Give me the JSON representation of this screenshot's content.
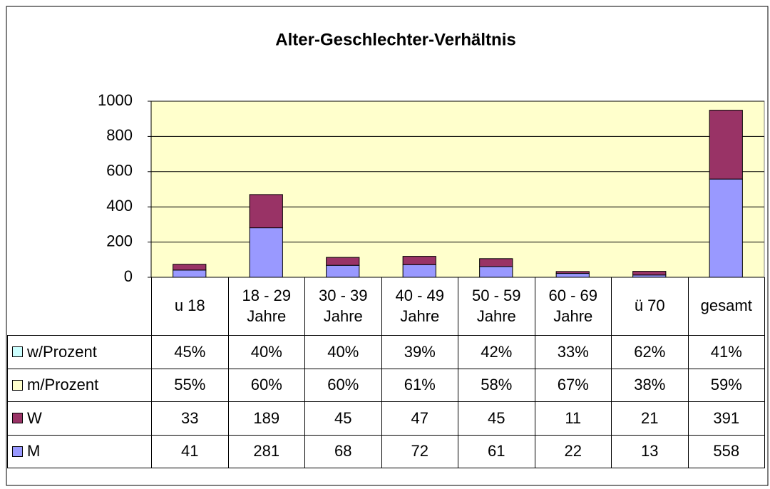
{
  "chart_data": {
    "type": "stacked_bar",
    "title": "Alter-Geschlechter-Verhältnis",
    "categories": [
      "u 18",
      "18 - 29 Jahre",
      "30 - 39 Jahre",
      "40 - 49 Jahre",
      "50 - 59 Jahre",
      "60 - 69 Jahre",
      "ü 70",
      "gesamt"
    ],
    "series": [
      {
        "name": "M",
        "color": "#9999ff",
        "values": [
          41,
          281,
          68,
          72,
          61,
          22,
          13,
          558
        ]
      },
      {
        "name": "W",
        "color": "#993366",
        "values": [
          33,
          189,
          45,
          47,
          45,
          11,
          21,
          391
        ]
      }
    ],
    "table_rows": [
      {
        "name": "w/Prozent",
        "color": "#ccffff",
        "values": [
          45,
          40,
          40,
          39,
          42,
          33,
          62,
          41
        ],
        "value_labels": [
          "45%",
          "40%",
          "40%",
          "39%",
          "42%",
          "33%",
          "62%",
          "41%"
        ]
      },
      {
        "name": "m/Prozent",
        "color": "#ffffcc",
        "values": [
          55,
          60,
          60,
          61,
          58,
          67,
          38,
          59
        ],
        "value_labels": [
          "55%",
          "60%",
          "60%",
          "61%",
          "58%",
          "67%",
          "38%",
          "59%"
        ]
      }
    ],
    "ylim": [
      0,
      1000
    ],
    "yticks": [
      0,
      200,
      400,
      600,
      800,
      1000
    ],
    "grid": true,
    "plot_background": "#ffffcc"
  }
}
